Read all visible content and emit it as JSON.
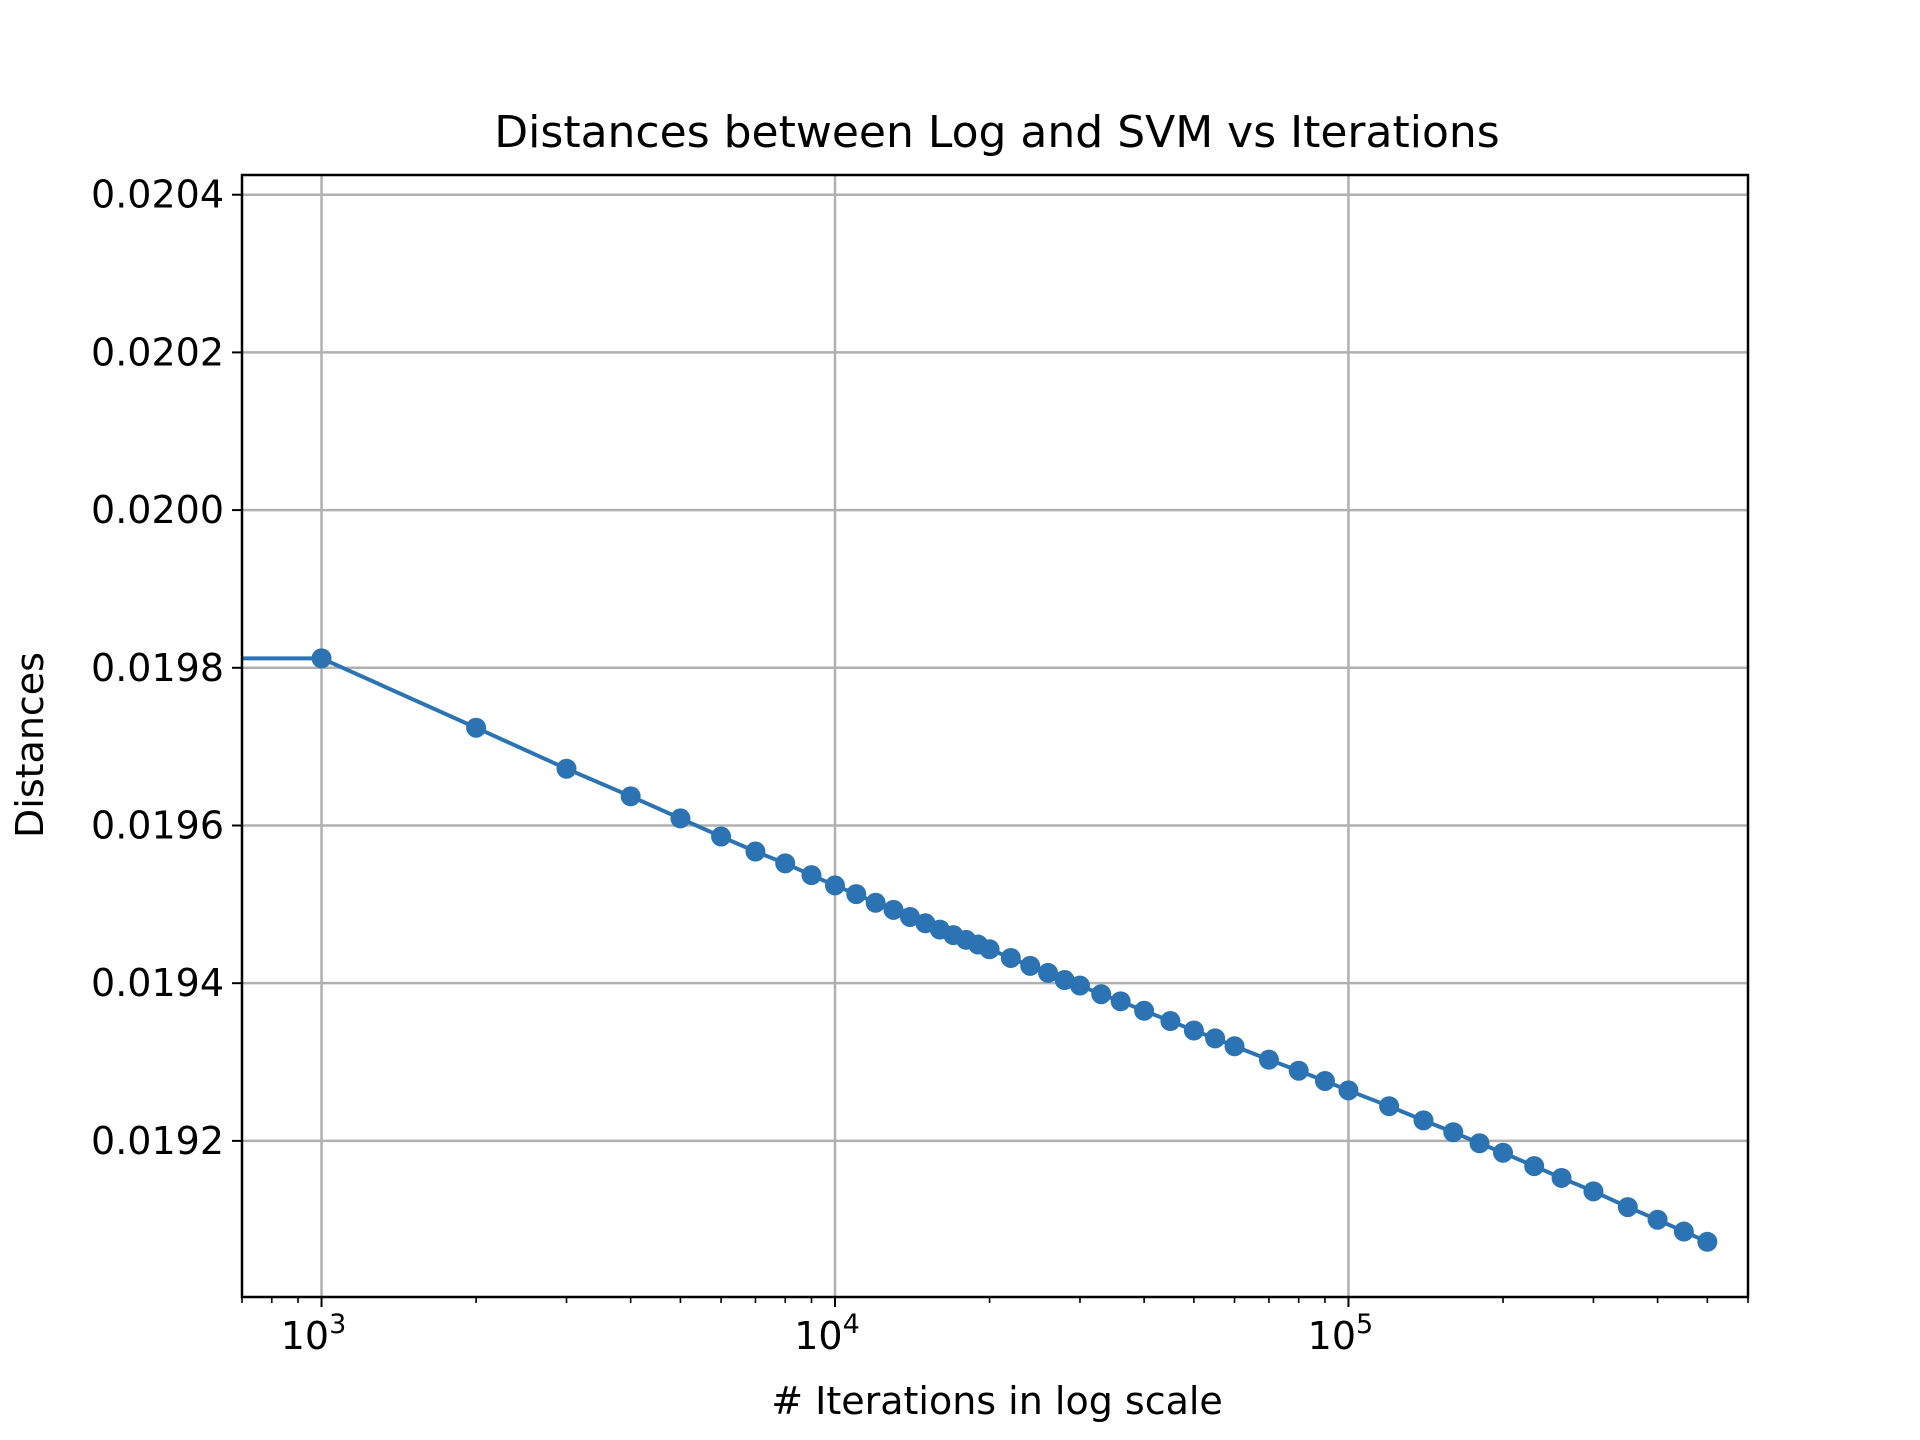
{
  "chart_data": {
    "type": "line",
    "title": "Distances between Log and SVM vs Iterations",
    "xlabel": "# Iterations in log scale",
    "ylabel": "Distances",
    "xscale": "log",
    "xlim": [
      700,
      600000
    ],
    "ylim": [
      0.019002,
      0.020425
    ],
    "grid": true,
    "colors": {
      "series": "#2b73b3",
      "grid": "#b0b0b0",
      "axes": "#000000"
    },
    "yticks": [
      0.0192,
      0.0194,
      0.0196,
      0.0198,
      0.02,
      0.0202,
      0.0204
    ],
    "ytick_labels": [
      "0.0192",
      "0.0194",
      "0.0196",
      "0.0198",
      "0.0200",
      "0.0202",
      "0.0204"
    ],
    "xticks_major": [
      1000,
      10000,
      100000
    ],
    "xtick_labels": [
      {
        "base": "10",
        "exp": "3"
      },
      {
        "base": "10",
        "exp": "4"
      },
      {
        "base": "10",
        "exp": "5"
      }
    ],
    "series": [
      {
        "x": [
          1,
          1000,
          2000,
          3000,
          4000,
          5000,
          6000,
          7000,
          8000,
          9000,
          10000,
          11000,
          12000,
          13000,
          14000,
          15000,
          16000,
          17000,
          18000,
          19000,
          20000,
          22000,
          24000,
          26000,
          28000,
          30000,
          33000,
          36000,
          40000,
          45000,
          50000,
          55000,
          60000,
          70000,
          80000,
          90000,
          100000,
          120000,
          140000,
          160000,
          180000,
          200000,
          230000,
          260000,
          300000,
          350000,
          400000,
          450000,
          500000
        ],
        "y": [
          0.019812,
          0.019812,
          0.019724,
          0.019672,
          0.019637,
          0.019609,
          0.019586,
          0.019567,
          0.019552,
          0.019537,
          0.019524,
          0.019513,
          0.019502,
          0.019493,
          0.019484,
          0.019476,
          0.019468,
          0.019461,
          0.019455,
          0.019449,
          0.019443,
          0.019432,
          0.019422,
          0.019413,
          0.019404,
          0.019397,
          0.019386,
          0.019377,
          0.019365,
          0.019352,
          0.01934,
          0.01933,
          0.01932,
          0.019303,
          0.019289,
          0.019276,
          0.019264,
          0.019244,
          0.019226,
          0.019211,
          0.019197,
          0.019185,
          0.019168,
          0.019153,
          0.019136,
          0.019116,
          0.0191,
          0.019085,
          0.019072
        ]
      }
    ]
  }
}
